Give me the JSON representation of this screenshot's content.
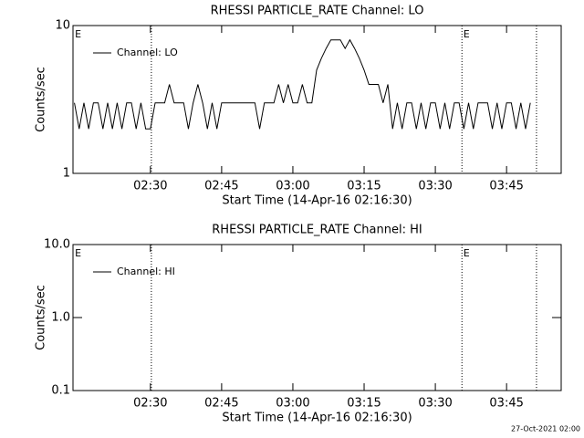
{
  "chart_data": [
    {
      "type": "line",
      "title": "RHESSI PARTICLE_RATE Channel: LO",
      "xlabel": "Start Time (14-Apr-16 02:16:30)",
      "ylabel": "Counts/sec",
      "log_y": true,
      "ylim": [
        1,
        10
      ],
      "yticks": [
        1,
        10
      ],
      "xlim": [
        133.7,
        236.5
      ],
      "xticks": [
        {
          "value": 150,
          "label": "02:30"
        },
        {
          "value": 165,
          "label": "02:45"
        },
        {
          "value": 180,
          "label": "03:00"
        },
        {
          "value": 195,
          "label": "03:15"
        },
        {
          "value": 210,
          "label": "03:30"
        },
        {
          "value": 225,
          "label": "03:45"
        }
      ],
      "vlines": [
        150.2,
        215.6,
        231.3
      ],
      "annotations": [
        {
          "text": "E",
          "x": 134.1
        },
        {
          "text": "E",
          "x": 215.9
        }
      ],
      "series": [
        {
          "name": "Channel: LO",
          "color": "#000000",
          "x": [
            134,
            135,
            136,
            137,
            138,
            139,
            140,
            141,
            142,
            143,
            144,
            145,
            146,
            147,
            148,
            149,
            150,
            151,
            152,
            153,
            154,
            155,
            156,
            157,
            158,
            159,
            160,
            161,
            162,
            163,
            164,
            165,
            166,
            167,
            168,
            169,
            170,
            171,
            172,
            173,
            174,
            175,
            176,
            177,
            178,
            179,
            180,
            181,
            182,
            183,
            184,
            185,
            186,
            187,
            188,
            189,
            190,
            191,
            192,
            193,
            194,
            195,
            196,
            197,
            198,
            199,
            200,
            201,
            202,
            203,
            204,
            205,
            206,
            207,
            208,
            209,
            210,
            211,
            212,
            213,
            214,
            215,
            216,
            217,
            218,
            219,
            220,
            221,
            222,
            223,
            224,
            225,
            226,
            227,
            228,
            229,
            230
          ],
          "values": [
            3,
            2,
            3,
            2,
            3,
            3,
            2,
            3,
            2,
            3,
            2,
            3,
            3,
            2,
            3,
            2,
            2,
            3,
            3,
            3,
            4,
            3,
            3,
            3,
            2,
            3,
            4,
            3,
            2,
            3,
            2,
            3,
            3,
            3,
            3,
            3,
            3,
            3,
            3,
            2,
            3,
            3,
            3,
            4,
            3,
            4,
            3,
            3,
            4,
            3,
            3,
            5,
            6,
            7,
            8,
            8,
            8,
            7,
            8,
            7,
            6,
            5,
            4,
            4,
            4,
            3,
            4,
            2,
            3,
            2,
            3,
            3,
            2,
            3,
            2,
            3,
            3,
            2,
            3,
            2,
            3,
            3,
            2,
            3,
            2,
            3,
            3,
            3,
            2,
            3,
            2,
            3,
            3,
            2,
            3,
            2,
            3
          ]
        }
      ]
    },
    {
      "type": "line",
      "title": "RHESSI PARTICLE_RATE Channel: HI",
      "xlabel": "Start Time (14-Apr-16 02:16:30)",
      "ylabel": "Counts/sec",
      "log_y": true,
      "ylim": [
        0.1,
        10
      ],
      "yticks": [
        {
          "value": 0.1,
          "label": "0.1"
        },
        {
          "value": 1,
          "label": "1.0"
        },
        {
          "value": 10,
          "label": "10.0"
        }
      ],
      "xlim": [
        133.7,
        236.5
      ],
      "xticks": [
        {
          "value": 150,
          "label": "02:30"
        },
        {
          "value": 165,
          "label": "02:45"
        },
        {
          "value": 180,
          "label": "03:00"
        },
        {
          "value": 195,
          "label": "03:15"
        },
        {
          "value": 210,
          "label": "03:30"
        },
        {
          "value": 225,
          "label": "03:45"
        }
      ],
      "vlines": [
        150.2,
        215.6,
        231.3
      ],
      "annotations": [
        {
          "text": "E",
          "x": 134.1
        },
        {
          "text": "E",
          "x": 215.9
        }
      ],
      "series": [
        {
          "name": "Channel: HI",
          "color": "#000000",
          "x": [],
          "values": []
        }
      ]
    }
  ],
  "footer": "27-Oct-2021 02:00"
}
